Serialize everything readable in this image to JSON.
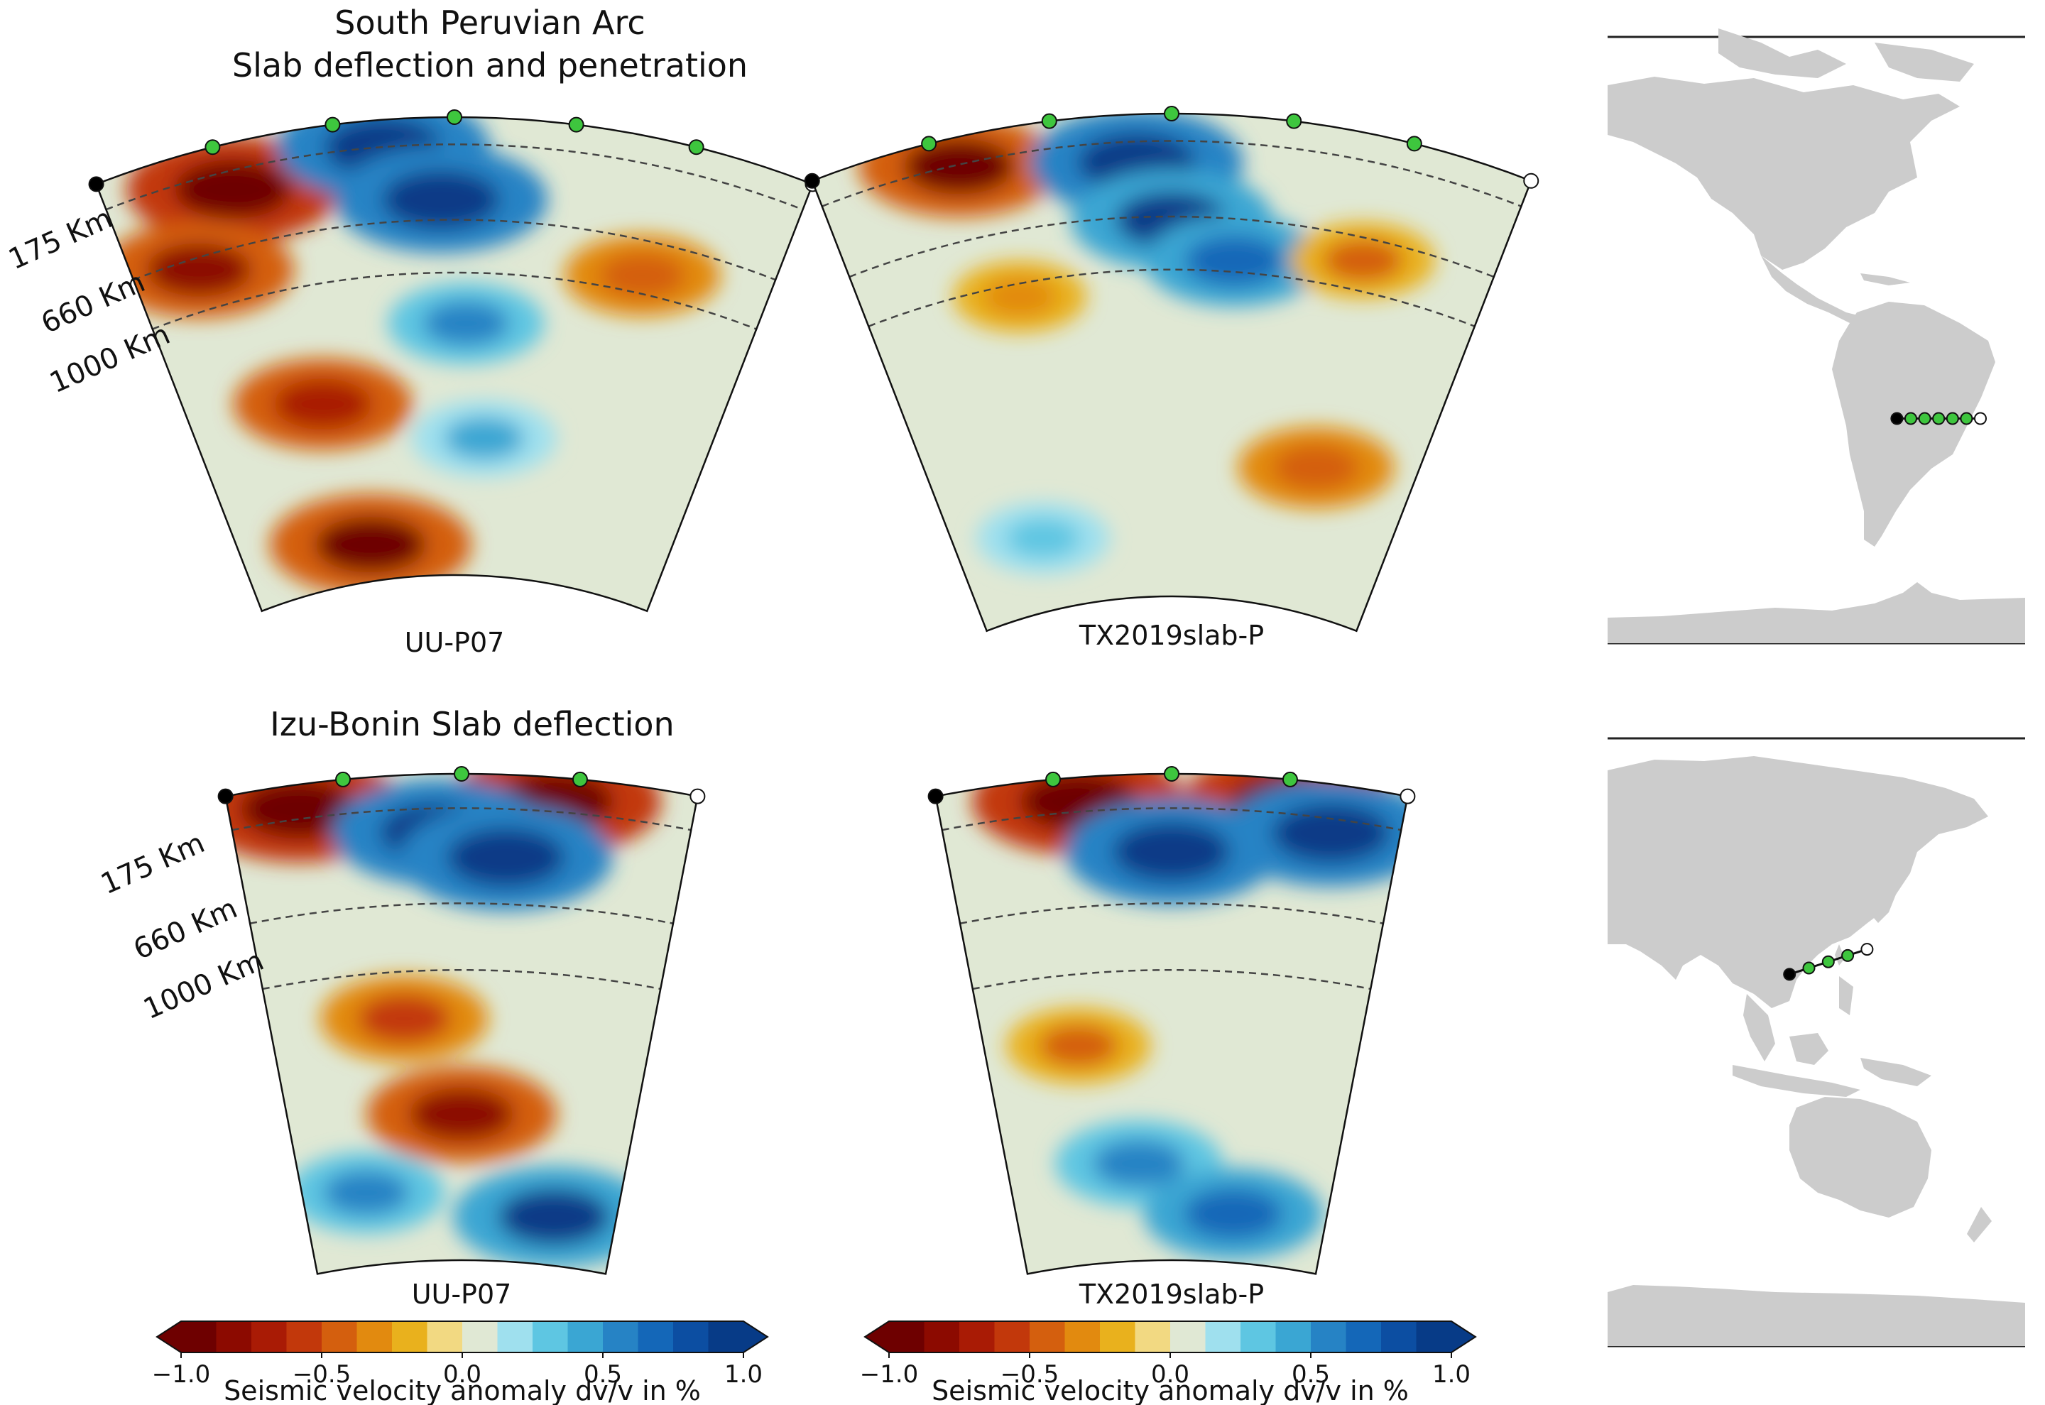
{
  "chart_data": [
    {
      "type": "heatmap",
      "panel": "South Peruvian Arc / UU-P07",
      "title_lines": [
        "South Peruvian Arc",
        "Slab deflection and penetration"
      ],
      "model": "UU-P07",
      "depth_labels": [
        "175 Km",
        "660 Km",
        "1000 Km"
      ],
      "depths_km": [
        175,
        660,
        1000
      ],
      "profile_markers": {
        "start": "black",
        "intermediate_count": 5,
        "end": "white",
        "intermediate_color": "#3ec63e"
      },
      "anomalies": [
        {
          "depth_frac": 0.1,
          "x_frac": 0.18,
          "value": -1.0
        },
        {
          "depth_frac": 0.25,
          "x_frac": 0.1,
          "value": -0.8
        },
        {
          "depth_frac": 0.06,
          "x_frac": 0.4,
          "value": 1.0
        },
        {
          "depth_frac": 0.18,
          "x_frac": 0.48,
          "value": 1.0
        },
        {
          "depth_frac": 0.45,
          "x_frac": 0.52,
          "value": 0.5
        },
        {
          "depth_frac": 0.6,
          "x_frac": 0.25,
          "value": -0.7
        },
        {
          "depth_frac": 0.7,
          "x_frac": 0.56,
          "value": 0.4
        },
        {
          "depth_frac": 0.92,
          "x_frac": 0.3,
          "value": -0.9
        },
        {
          "depth_frac": 0.3,
          "x_frac": 0.8,
          "value": -0.5
        }
      ]
    },
    {
      "type": "heatmap",
      "panel": "South Peruvian Arc / TX2019slab-P",
      "model": "TX2019slab-P",
      "depths_km": [
        175,
        660,
        1000
      ],
      "profile_markers": {
        "start": "black",
        "intermediate_count": 5,
        "end": "white",
        "intermediate_color": "#3ec63e"
      },
      "anomalies": [
        {
          "depth_frac": 0.06,
          "x_frac": 0.2,
          "value": -0.9
        },
        {
          "depth_frac": 0.1,
          "x_frac": 0.45,
          "value": 1.0
        },
        {
          "depth_frac": 0.22,
          "x_frac": 0.5,
          "value": 0.9
        },
        {
          "depth_frac": 0.3,
          "x_frac": 0.6,
          "value": 0.7
        },
        {
          "depth_frac": 0.26,
          "x_frac": 0.8,
          "value": -0.4
        },
        {
          "depth_frac": 0.35,
          "x_frac": 0.25,
          "value": -0.3
        },
        {
          "depth_frac": 0.7,
          "x_frac": 0.8,
          "value": -0.5
        },
        {
          "depth_frac": 0.85,
          "x_frac": 0.2,
          "value": 0.3
        }
      ]
    },
    {
      "type": "heatmap",
      "panel": "Izu-Bonin / UU-P07",
      "title_lines": [
        "Izu-Bonin Slab deflection"
      ],
      "model": "UU-P07",
      "depth_labels": [
        "175 Km",
        "660 Km",
        "1000 Km"
      ],
      "depths_km": [
        175,
        660,
        1000
      ],
      "profile_markers": {
        "start": "black",
        "intermediate_count": 3,
        "end": "white",
        "intermediate_color": "#3ec63e"
      },
      "anomalies": [
        {
          "depth_frac": 0.05,
          "x_frac": 0.15,
          "value": -1.0
        },
        {
          "depth_frac": 0.05,
          "x_frac": 0.7,
          "value": -1.0
        },
        {
          "depth_frac": 0.12,
          "x_frac": 0.45,
          "value": 1.0
        },
        {
          "depth_frac": 0.17,
          "x_frac": 0.6,
          "value": 1.0
        },
        {
          "depth_frac": 0.5,
          "x_frac": 0.35,
          "value": -0.6
        },
        {
          "depth_frac": 0.7,
          "x_frac": 0.5,
          "value": -0.8
        },
        {
          "depth_frac": 0.9,
          "x_frac": 0.8,
          "value": 0.9
        },
        {
          "depth_frac": 0.85,
          "x_frac": 0.2,
          "value": 0.5
        }
      ]
    },
    {
      "type": "heatmap",
      "panel": "Izu-Bonin / TX2019slab-P",
      "model": "TX2019slab-P",
      "depths_km": [
        175,
        660,
        1000
      ],
      "profile_markers": {
        "start": "black",
        "intermediate_count": 3,
        "end": "white",
        "intermediate_color": "#3ec63e"
      },
      "anomalies": [
        {
          "depth_frac": 0.05,
          "x_frac": 0.3,
          "value": -1.0
        },
        {
          "depth_frac": 0.05,
          "x_frac": 0.75,
          "value": -1.0
        },
        {
          "depth_frac": 0.16,
          "x_frac": 0.5,
          "value": 1.0
        },
        {
          "depth_frac": 0.1,
          "x_frac": 0.85,
          "value": 1.0
        },
        {
          "depth_frac": 0.55,
          "x_frac": 0.25,
          "value": -0.4
        },
        {
          "depth_frac": 0.8,
          "x_frac": 0.4,
          "value": 0.6
        },
        {
          "depth_frac": 0.9,
          "x_frac": 0.7,
          "value": 0.7
        }
      ]
    },
    {
      "type": "colorbar",
      "vmin": -1.0,
      "vmax": 1.0,
      "ticks": [
        -1.0,
        -0.5,
        0.0,
        0.5,
        1.0
      ],
      "tick_labels": [
        "−1.0",
        "−0.5",
        "0.0",
        "0.5",
        "1.0"
      ],
      "label": "Seismic velocity anomaly dv/v in %",
      "colors": [
        "#6e0000",
        "#8c0a00",
        "#a91b05",
        "#c2380b",
        "#d45f0e",
        "#e28a0f",
        "#e9b11d",
        "#f2d982",
        "#e0e8d4",
        "#9fe0ee",
        "#5ec6e2",
        "#3aa6d3",
        "#2683c5",
        "#1467b8",
        "#0c4ea2",
        "#073b87"
      ]
    },
    {
      "type": "map",
      "panel": "profile location (Americas)",
      "profile_lonlat": {
        "start": [
          -73,
          -17
        ],
        "end": [
          -45,
          -17
        ]
      },
      "intermediate_count": 5
    },
    {
      "type": "map",
      "panel": "profile location (East Asia)",
      "profile_lonlat": {
        "start": [
          121,
          24
        ],
        "end": [
          147,
          31
        ]
      },
      "intermediate_count": 3
    }
  ],
  "captions": {
    "top_title_1": "South Peruvian Arc",
    "top_title_2": "Slab deflection and penetration",
    "bottom_title": "Izu-Bonin Slab deflection",
    "tl_model": "UU-P07",
    "tr_model": "TX2019slab-P",
    "bl_model": "UU-P07",
    "br_model": "TX2019slab-P",
    "depth_175": "175 Km",
    "depth_660": "660 Km",
    "depth_1000": "1000 Km",
    "colorbar_label": "Seismic velocity anomaly dv/v in %"
  },
  "tick_labels": [
    "−1.0",
    "−0.5",
    "0.0",
    "0.5",
    "1.0"
  ]
}
